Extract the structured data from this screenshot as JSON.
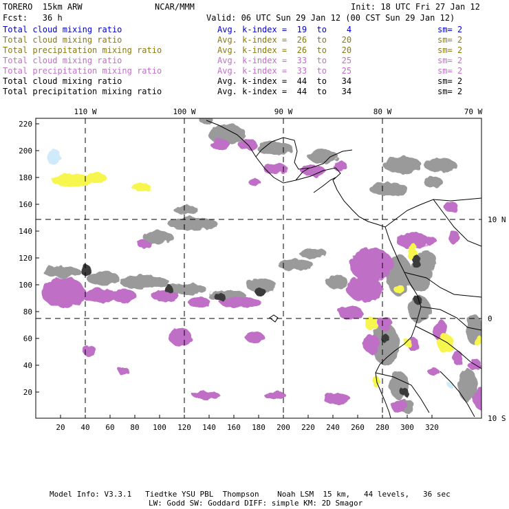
{
  "header": {
    "model": "TORERO  15km ARW",
    "org": "NCAR/MMM",
    "init": "Init: 18 UTC Fri 27 Jan 12",
    "fcst": "Fcst:   36 h",
    "valid": "Valid: 06 UTC Sun 29 Jan 12 (00 CST Sun 29 Jan 12)"
  },
  "legend": [
    {
      "field": "Total cloud mixing ratio",
      "kindex": "Avg. k-index =  19  to    4",
      "sm": "sm= 2",
      "color": "#0000cc"
    },
    {
      "field": "Total cloud mixing ratio",
      "kindex": "Avg. k-index =  26  to   20",
      "sm": "sm= 2",
      "color": "#8a7a10"
    },
    {
      "field": "Total precipitation mixing ratio",
      "kindex": "Avg. k-index =  26  to   20",
      "sm": "sm= 2",
      "color": "#8a7a10"
    },
    {
      "field": "Total cloud mixing ratio",
      "kindex": "Avg. k-index =  33  to   25",
      "sm": "sm= 2",
      "color": "#c070c8"
    },
    {
      "field": "Total precipitation mixing ratio",
      "kindex": "Avg. k-index =  33  to   25",
      "sm": "sm= 2",
      "color": "#c070c8"
    },
    {
      "field": "Total cloud mixing ratio",
      "kindex": "Avg. k-index =  44  to   34",
      "sm": "sm= 2",
      "color": "#000000"
    },
    {
      "field": "Total precipitation mixing ratio",
      "kindex": "Avg. k-index =  44  to   34",
      "sm": "sm= 2",
      "color": "#000000"
    }
  ],
  "map": {
    "lon_labels": [
      "110 W",
      "100 W",
      "90 W",
      "80 W",
      "70 W"
    ],
    "lat_labels": [
      "10 N",
      "0",
      "10 S"
    ],
    "x_ticks": [
      "20",
      "40",
      "60",
      "80",
      "100",
      "120",
      "140",
      "160",
      "180",
      "200",
      "220",
      "240",
      "260",
      "280",
      "300",
      "320"
    ],
    "y_ticks": [
      "220",
      "200",
      "180",
      "160",
      "140",
      "120",
      "100",
      "80",
      "60",
      "40",
      "20"
    ],
    "colors": {
      "gray": "#9a9a9a",
      "dark": "#3a3a3a",
      "purple": "#bf6fc6",
      "yellow": "#f6f650",
      "cyan": "#cfeaf8"
    }
  },
  "footer": {
    "line1": "Model Info: V3.3.1   Tiedtke YSU PBL  Thompson    Noah LSM  15 km,   44 levels,   36 sec",
    "line2": "LW: Godd SW: Goddard DIFF: simple KM: 2D Smagor"
  }
}
